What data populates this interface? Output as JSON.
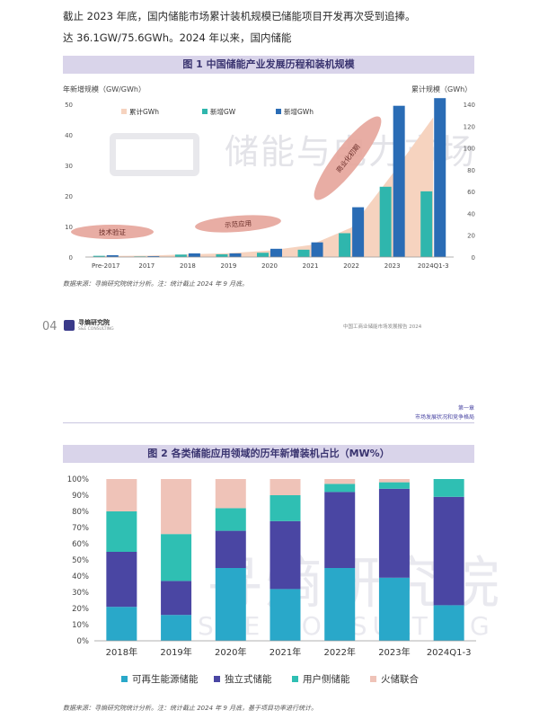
{
  "top_text": {
    "left_line1": "截止 2023 年底，国内储能市场累计装机规模已",
    "left_line2": "达 36.1GW/75.6GWh。2024 年以来，国内储能",
    "right_line1": "储能项目开发再次受到追捧。"
  },
  "figure1": {
    "title": "图 1 中国储能产业发展历程和装机规模",
    "left_axis_label": "年新增规模（GW/GWh）",
    "right_axis_label": "累计规模（GWh）",
    "legend": [
      "累计GWh",
      "新增GW",
      "新增GWh"
    ],
    "watermark_text": "储能与电力市场",
    "source": "数据来源：寻熵研究院统计分析。注：统计截止 2024 年 9 月底。",
    "stages": [
      "技术验证",
      "示范应用",
      "商业化初期"
    ],
    "colors": {
      "cumulative": "#f6d3bf",
      "new_gw": "#2fb6ad",
      "new_gwh": "#2a6cb5",
      "stage": "#e6a49a"
    },
    "chart_data": {
      "type": "bar",
      "categories": [
        "Pre-2017",
        "2017",
        "2018",
        "2019",
        "2020",
        "2021",
        "2022",
        "2023",
        "2024Q1-3"
      ],
      "series": [
        {
          "name": "新增GW",
          "axis": "left",
          "values": [
            0.4,
            0.2,
            0.8,
            0.9,
            1.4,
            2.4,
            7.8,
            23,
            21.5
          ]
        },
        {
          "name": "新增GWh",
          "axis": "left",
          "values": [
            0.6,
            0.3,
            1.2,
            1.2,
            2.7,
            4.8,
            16.3,
            49.5,
            52
          ]
        },
        {
          "name": "累计GWh",
          "type": "area",
          "axis": "right",
          "values": [
            1,
            1.2,
            2.5,
            3.5,
            6,
            11,
            27,
            76,
            128
          ]
        }
      ],
      "ylim_left": [
        0,
        50
      ],
      "yticks_left": [
        "0",
        "10",
        "20",
        "30",
        "40",
        "50"
      ],
      "ylim_right": [
        0,
        140
      ],
      "yticks_right": [
        "0",
        "20",
        "40",
        "60",
        "80",
        "100",
        "120",
        "140"
      ]
    }
  },
  "footer": {
    "page_number": "04",
    "logo_text": "寻熵研究院",
    "logo_sub": "S&E CONSULTING",
    "report_title": "中国工商业储能市场发展报告 2024"
  },
  "chapter": {
    "number": "第一章",
    "name": "市场发展状况和竞争格局"
  },
  "figure2": {
    "title": "图 2 各类储能应用领域的历年新增装机占比（MW%）",
    "watermark_text": "寻熵研究院",
    "watermark_sub": "S&E CONSULTING",
    "source": "数据来源：寻熵研究院统计分析。注：统计截止 2024 年 9 月底，基于项目功率进行统计。",
    "colors": {
      "renewable": "#29a8c9",
      "independent": "#4a46a3",
      "user": "#2fbfb3",
      "thermal": "#efc3b8"
    },
    "chart_data": {
      "type": "bar",
      "stacked": true,
      "categories": [
        "2018年",
        "2019年",
        "2020年",
        "2021年",
        "2022年",
        "2023年",
        "2024Q1-3"
      ],
      "series": [
        {
          "name": "可再生能源储能",
          "values": [
            21,
            16,
            45,
            32,
            45,
            39,
            22
          ]
        },
        {
          "name": "独立式储能",
          "values": [
            34,
            21,
            23,
            42,
            47,
            55,
            67
          ]
        },
        {
          "name": "用户侧储能",
          "values": [
            25,
            29,
            14,
            16,
            5,
            4,
            11
          ]
        },
        {
          "name": "火储联合",
          "values": [
            20,
            34,
            18,
            10,
            3,
            2,
            0
          ]
        }
      ],
      "ylim": [
        0,
        100
      ],
      "yticks": [
        "0%",
        "10%",
        "20%",
        "30%",
        "40%",
        "50%",
        "60%",
        "70%",
        "80%",
        "90%",
        "100%"
      ]
    }
  }
}
